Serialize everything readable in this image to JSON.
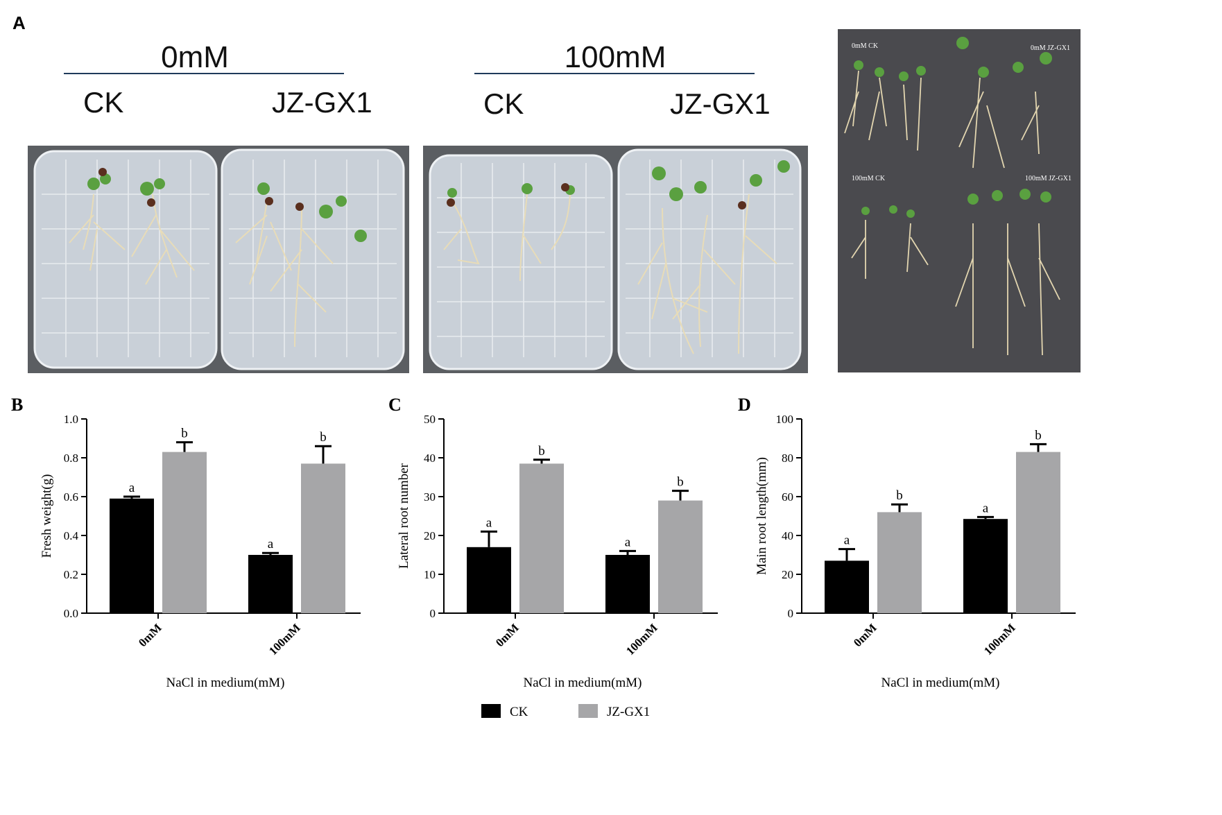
{
  "panel_a": {
    "letter": "A",
    "groups": [
      {
        "concentration": "0mM",
        "left_label": "CK",
        "right_label": "JZ-GX1"
      },
      {
        "concentration": "100mM",
        "left_label": "CK",
        "right_label": "JZ-GX1"
      }
    ],
    "photo_labels": [
      "0mM CK",
      "0mM JZ-GX1",
      "100mM CK",
      "100mM JZ-GX1"
    ]
  },
  "colors": {
    "ck": "#000000",
    "jz": "#a6a6a8",
    "line": "#1f3a5a",
    "photo_bg": "#4a4a4e"
  },
  "legend": {
    "items": [
      {
        "label": "CK",
        "color": "#000000"
      },
      {
        "label": "JZ-GX1",
        "color": "#a6a6a8"
      }
    ]
  },
  "chart_data": [
    {
      "letter": "B",
      "type": "bar",
      "ylabel": "Fresh weight(g)",
      "xlabel": "NaCl in medium(mM)",
      "categories": [
        "0mM",
        "100mM"
      ],
      "ylim": [
        0,
        1.0
      ],
      "yticks": [
        "0.0",
        "0.2",
        "0.4",
        "0.6",
        "0.8",
        "1.0"
      ],
      "series": [
        {
          "name": "CK",
          "values": [
            0.59,
            0.3
          ],
          "errors": [
            0.01,
            0.01
          ],
          "letters": [
            "a",
            "a"
          ]
        },
        {
          "name": "JZ-GX1",
          "values": [
            0.83,
            0.77
          ],
          "errors": [
            0.05,
            0.09
          ],
          "letters": [
            "b",
            "b"
          ]
        }
      ]
    },
    {
      "letter": "C",
      "type": "bar",
      "ylabel": "Lateral root number",
      "xlabel": "NaCl in medium(mM)",
      "categories": [
        "0mM",
        "100mM"
      ],
      "ylim": [
        0,
        50
      ],
      "yticks": [
        "0",
        "10",
        "20",
        "30",
        "40",
        "50"
      ],
      "series": [
        {
          "name": "CK",
          "values": [
            17,
            15
          ],
          "errors": [
            4,
            1
          ],
          "letters": [
            "a",
            "a"
          ]
        },
        {
          "name": "JZ-GX1",
          "values": [
            38.5,
            29
          ],
          "errors": [
            1,
            2.5
          ],
          "letters": [
            "b",
            "b"
          ]
        }
      ]
    },
    {
      "letter": "D",
      "type": "bar",
      "ylabel": "Main root length(mm)",
      "xlabel": "NaCl in medium(mM)",
      "categories": [
        "0mM",
        "100mM"
      ],
      "ylim": [
        0,
        100
      ],
      "yticks": [
        "0",
        "20",
        "40",
        "60",
        "80",
        "100"
      ],
      "series": [
        {
          "name": "CK",
          "values": [
            27,
            48.5
          ],
          "errors": [
            6,
            1
          ],
          "letters": [
            "a",
            "a"
          ]
        },
        {
          "name": "JZ-GX1",
          "values": [
            52,
            83
          ],
          "errors": [
            4,
            4
          ],
          "letters": [
            "b",
            "b"
          ]
        }
      ]
    }
  ]
}
